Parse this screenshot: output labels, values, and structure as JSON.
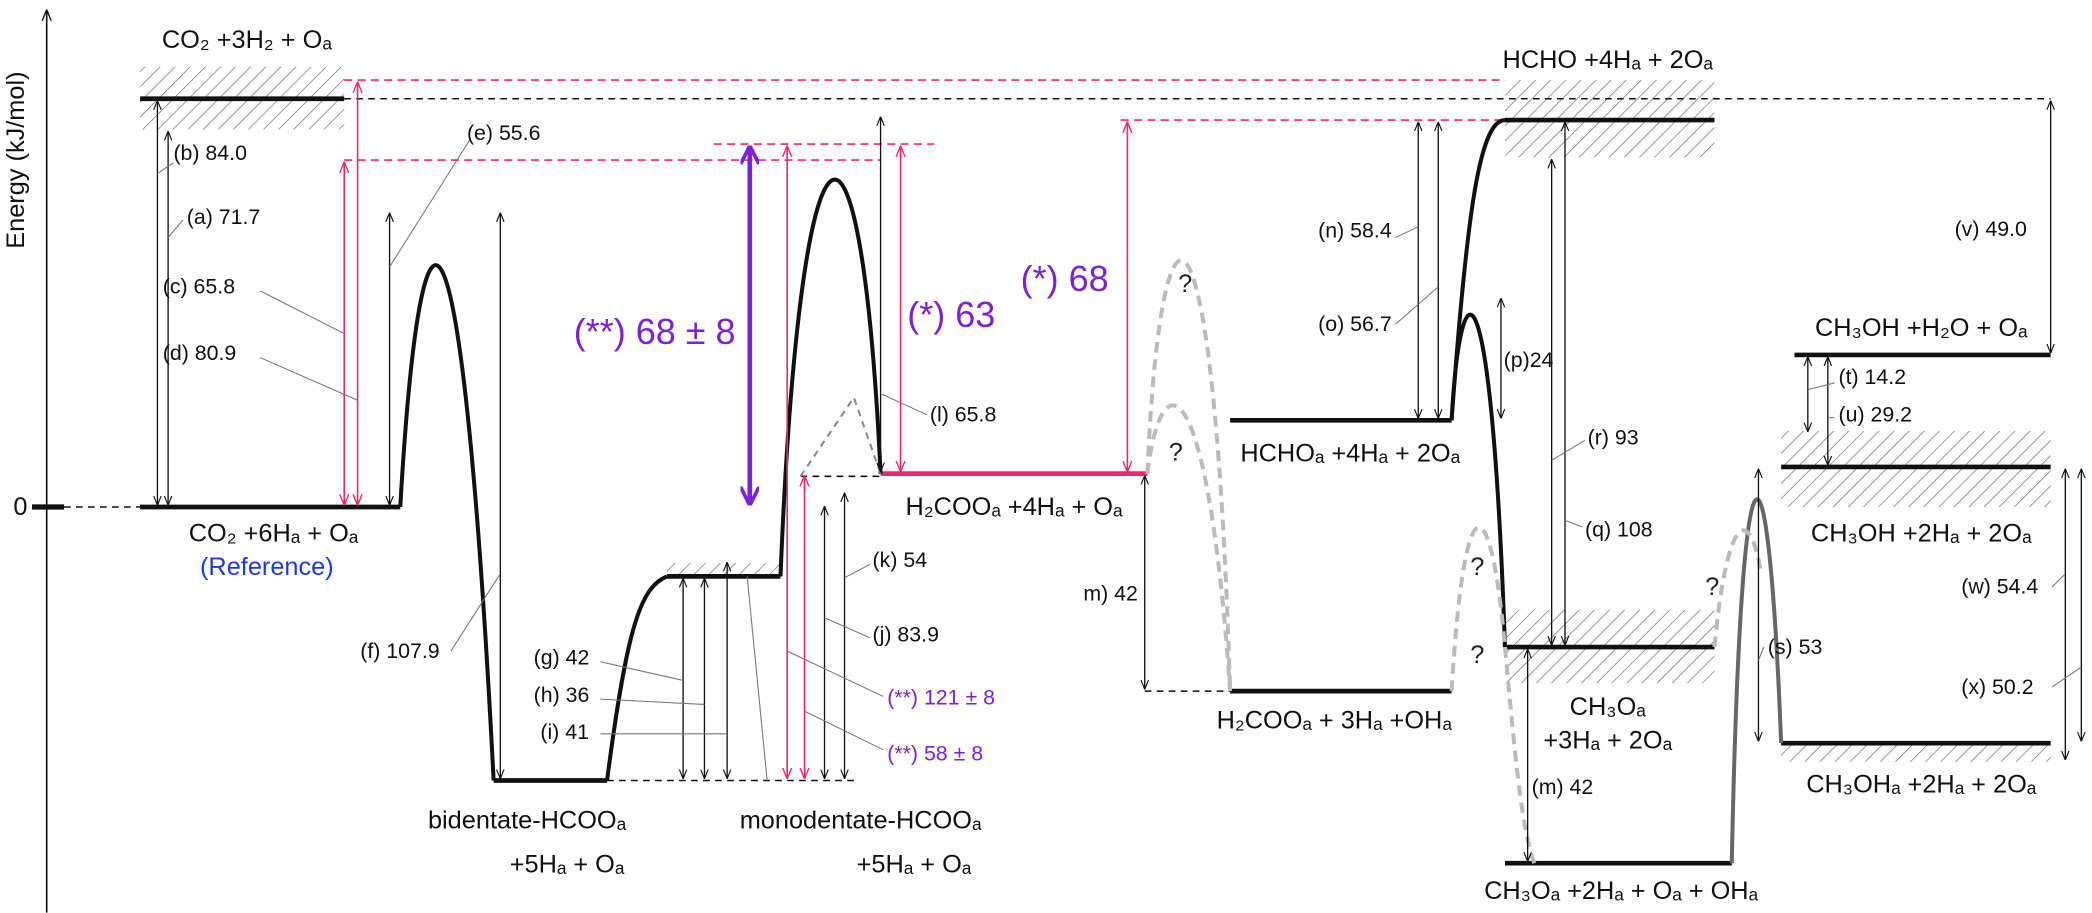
{
  "axis": {
    "label": "Energy (kJ/mol)",
    "zero": "0"
  },
  "states": [
    "CO₂ +3H₂ + Oₐ",
    "CO₂ +6Hₐ + Oₐ",
    "(Reference)",
    "bidentate-HCOOₐ",
    "+5Hₐ + Oₐ",
    "monodentate-HCOOₐ",
    "+5Hₐ + Oₐ",
    "H₂COOₐ +4Hₐ + Oₐ",
    "HCHOₐ +4Hₐ + 2Oₐ",
    "H₂COOₐ + 3Hₐ +OHₐ",
    "HCHO +4Hₐ + 2Oₐ",
    "CH₃Oₐ",
    "+3Hₐ + 2Oₐ",
    "CH₃Oₐ +2Hₐ + Oₐ + OHₐ",
    "CH₃OH +H₂O + Oₐ",
    "CH₃OH +2Hₐ + 2Oₐ",
    "CH₃OHₐ +2Hₐ + 2Oₐ"
  ],
  "energies": [
    "(b) 84.0",
    "(a) 71.7",
    "(c) 65.8",
    "(d) 80.9",
    "(e) 55.6",
    "(f) 107.9",
    "(g) 42",
    "(h) 36",
    "(i) 41",
    "(k) 54",
    "(j) 83.9",
    "(**) 121 ± 8",
    "(**) 58 ± 8",
    "(l) 65.8",
    "m) 42",
    "(n) 58.4",
    "(o) 56.7",
    "(p)24",
    "(r) 93",
    "(q) 108",
    "(s) 53",
    "(m) 42",
    "(v) 49.0",
    "(t) 14.2",
    "(u) 29.2",
    "(w) 54.4",
    "(x) 50.2"
  ],
  "barriers": [
    "(**) 68 ± 8",
    "(*) 63",
    "(*) 68"
  ],
  "unknown": [
    "?",
    "?",
    "?",
    "?",
    "?"
  ]
}
